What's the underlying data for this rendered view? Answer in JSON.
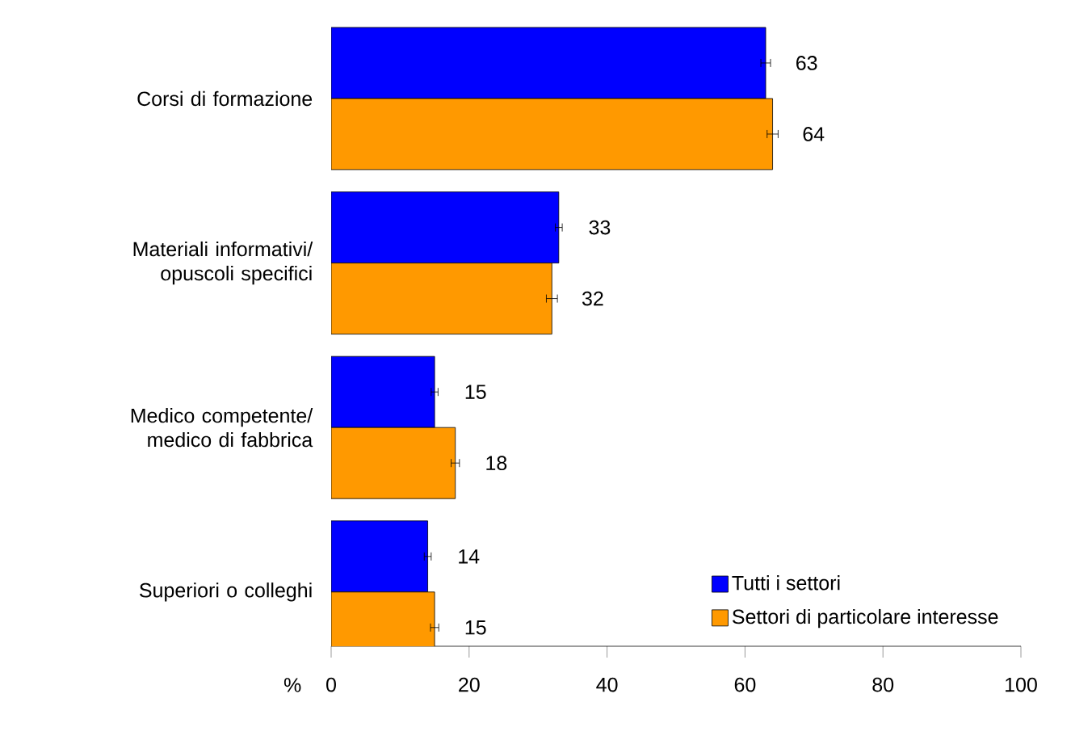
{
  "chart_data": {
    "type": "bar",
    "orientation": "horizontal",
    "categories": [
      "Corsi di formazione",
      "Materiali informativi/ opuscoli specifici",
      "Medico competente/ medico di fabbrica",
      "Superiori o colleghi"
    ],
    "series": [
      {
        "name": "Tutti i settori",
        "color": "#0000ff",
        "values": [
          63,
          33,
          15,
          14
        ],
        "errors": [
          0.7,
          0.5,
          0.5,
          0.5
        ]
      },
      {
        "name": "Settori di particolare interesse",
        "color": "#ff9900",
        "values": [
          64,
          32,
          18,
          15
        ],
        "errors": [
          0.8,
          0.8,
          0.6,
          0.6
        ]
      }
    ],
    "xlabel": "%",
    "xlim": [
      0,
      100
    ],
    "xticks": [
      0,
      20,
      40,
      60,
      80,
      100
    ],
    "data_labels": true,
    "legend": "bottom right",
    "grid": false
  }
}
